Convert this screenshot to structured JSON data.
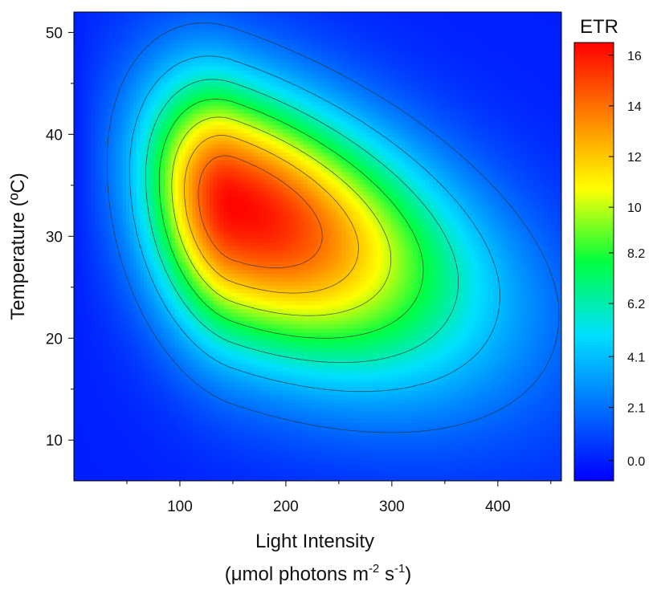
{
  "chart_data": {
    "type": "heatmap",
    "subtype": "filled-contour",
    "xlabel": "Light Intensity",
    "xlabel_units": {
      "open": "(",
      "mu": "μ",
      "main": "mol photons m",
      "exp1": "-2",
      "mid": " s",
      "exp2": "-1",
      "close": ")"
    },
    "ylabel": "Temperature (ºC)",
    "xlim": [
      0,
      460
    ],
    "ylim": [
      6,
      52
    ],
    "x_ticks": [
      100,
      200,
      300,
      400
    ],
    "y_ticks": [
      10,
      20,
      30,
      40,
      50
    ],
    "colorbar": {
      "title": "ETR",
      "range": [
        -0.8,
        16.5
      ],
      "ticks": [
        0.0,
        2.1,
        4.1,
        6.2,
        8.2,
        10,
        12,
        14,
        16
      ],
      "tick_labels": [
        "0.0",
        "2.1",
        "4.1",
        "6.2",
        "8.2",
        "10",
        "12",
        "14",
        "16"
      ],
      "colormap": [
        "#0000ff",
        "#0070ff",
        "#00e0ff",
        "#00ff40",
        "#ffff00",
        "#ff8000",
        "#ff0000"
      ]
    },
    "peak": {
      "x": 150,
      "y": 33,
      "value": 16.4
    },
    "contour_levels": [
      2,
      4,
      6,
      8,
      10,
      12,
      14
    ],
    "grid": false,
    "legend": "colorbar-right"
  }
}
